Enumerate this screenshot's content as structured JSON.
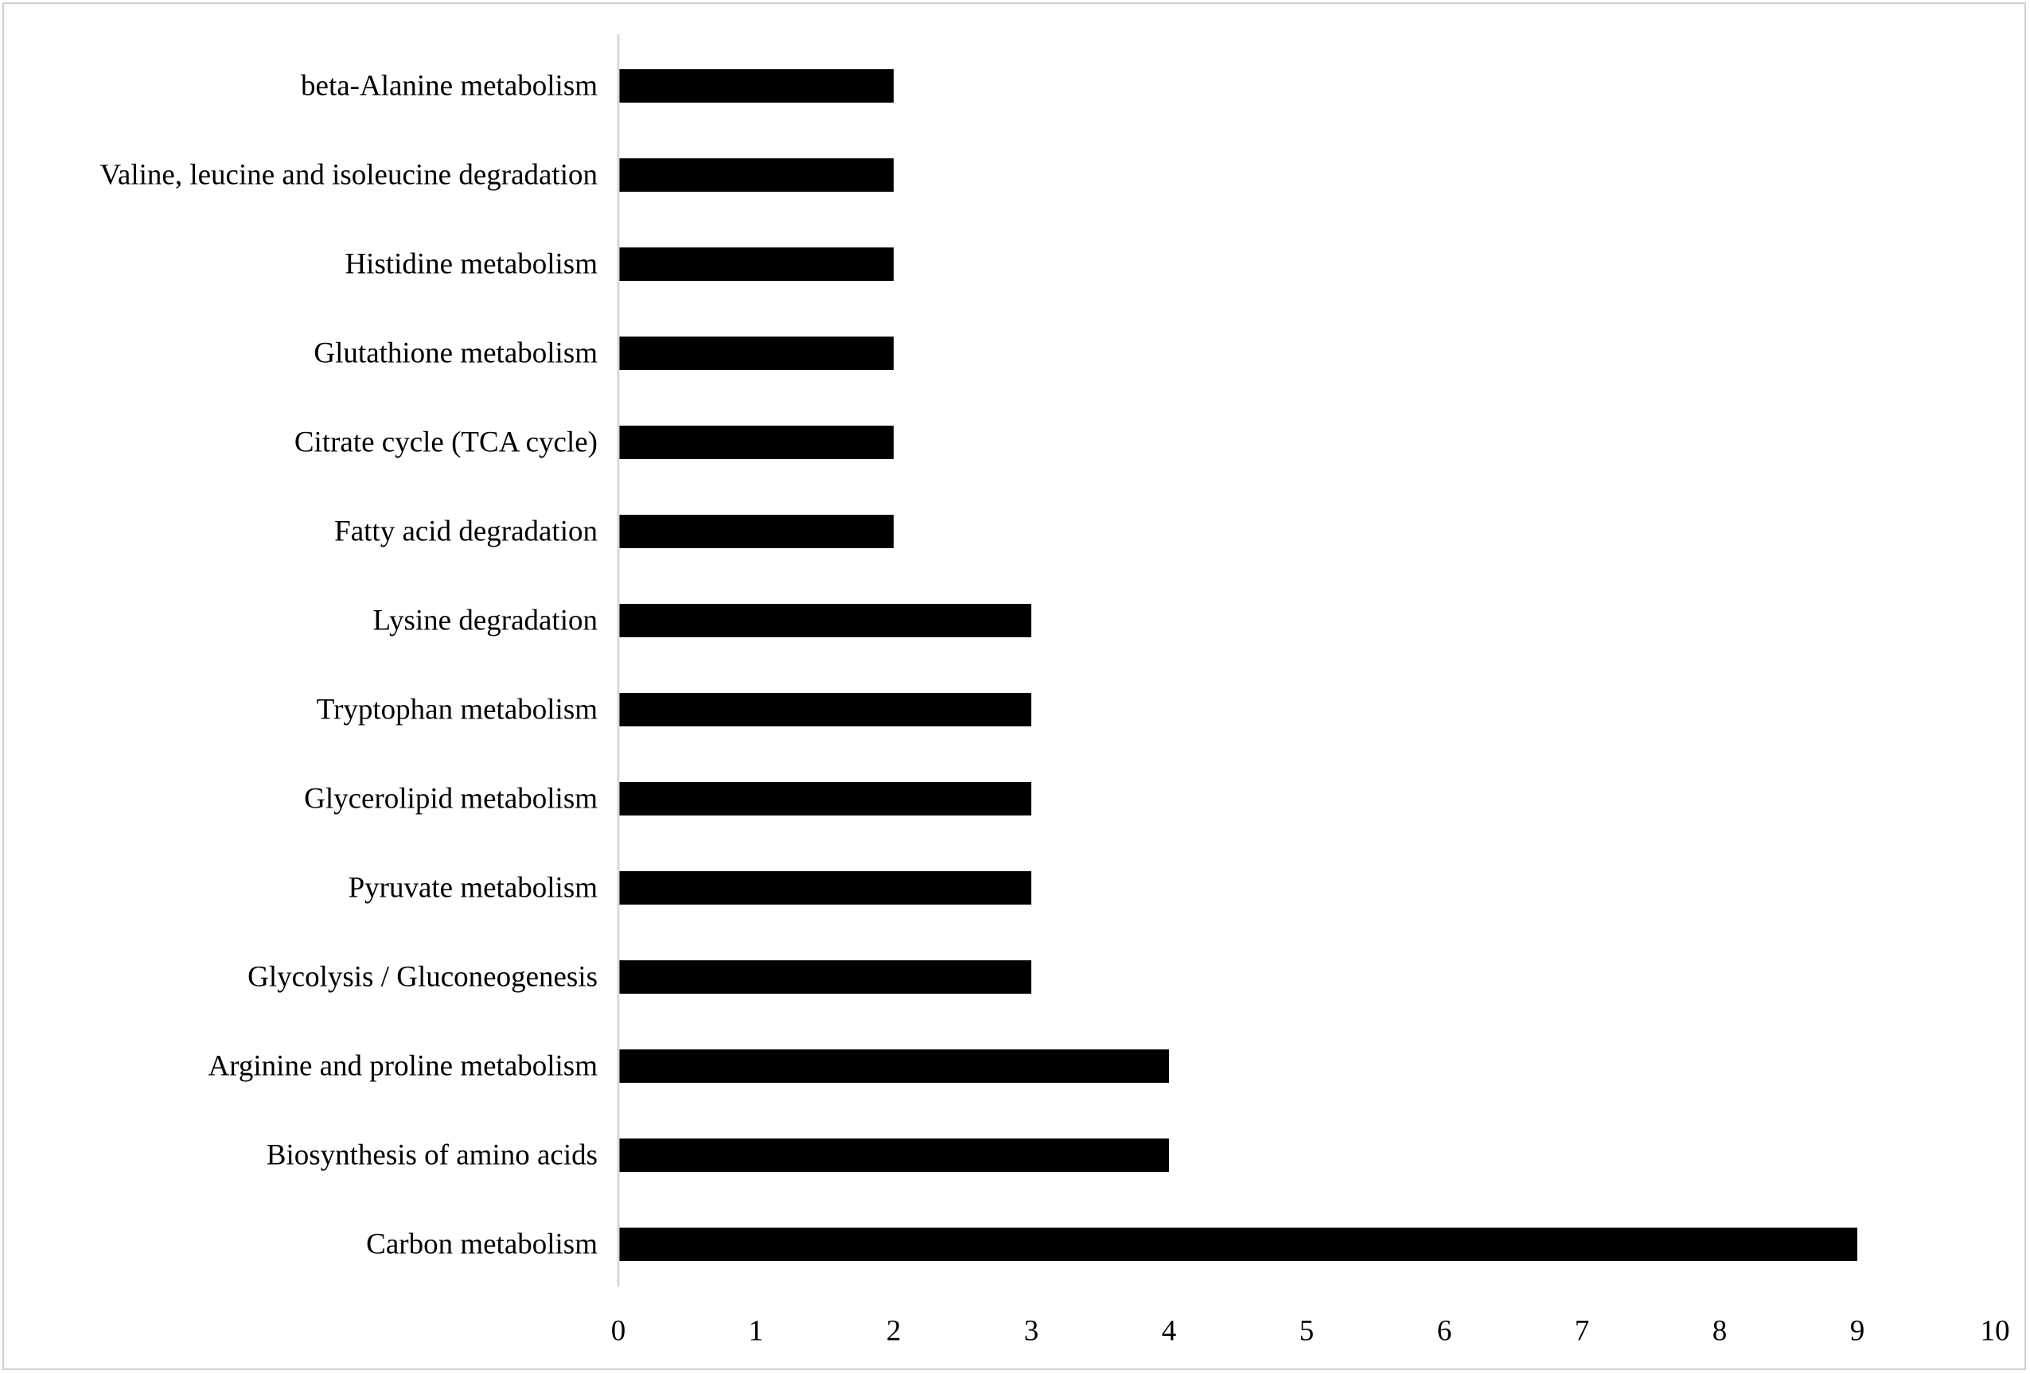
{
  "chart_data": {
    "type": "bar",
    "orientation": "horizontal",
    "title": "",
    "xlabel": "",
    "ylabel": "",
    "categories": [
      "beta-Alanine metabolism",
      "Valine, leucine and isoleucine degradation",
      "Histidine metabolism",
      "Glutathione metabolism",
      "Citrate cycle (TCA cycle)",
      "Fatty acid degradation",
      "Lysine degradation",
      "Tryptophan metabolism",
      "Glycerolipid metabolism",
      "Pyruvate metabolism",
      "Glycolysis / Gluconeogenesis",
      "Arginine and proline metabolism",
      "Biosynthesis of amino acids",
      "Carbon metabolism"
    ],
    "values": [
      2,
      2,
      2,
      2,
      2,
      2,
      3,
      3,
      3,
      3,
      3,
      4,
      4,
      9
    ],
    "xlim": [
      0,
      10
    ],
    "x_ticks": [
      "0",
      "1",
      "2",
      "3",
      "4",
      "5",
      "6",
      "7",
      "8",
      "9",
      "10"
    ],
    "grid": false,
    "legend": "none",
    "bar_color": "#000000",
    "axis_color": "#d9d9d9"
  }
}
